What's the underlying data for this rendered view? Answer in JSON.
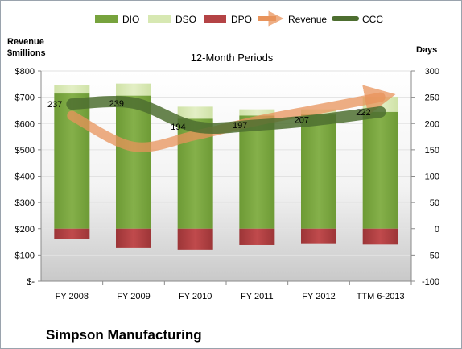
{
  "chart_data": {
    "type": "bar",
    "title": "12-Month Periods",
    "company": "Simpson Manufacturing",
    "categories": [
      "FY 2008",
      "FY 2009",
      "FY 2010",
      "FY 2011",
      "FY 2012",
      "TTM 6-2013"
    ],
    "legend": [
      "DIO",
      "DSO",
      "DPO",
      "Revenue",
      "CCC"
    ],
    "left_axis": {
      "title_line1": "Revenue",
      "title_line2": "$millions",
      "ylim": [
        0,
        800
      ],
      "ticks": [
        0,
        100,
        200,
        300,
        400,
        500,
        600,
        700,
        800
      ],
      "tick_labels": [
        "$-",
        "$100",
        "$200",
        "$300",
        "$400",
        "$500",
        "$600",
        "$700",
        "$800"
      ]
    },
    "right_axis": {
      "title": "Days",
      "ylim": [
        -100,
        300
      ],
      "ticks": [
        -100,
        -50,
        0,
        50,
        100,
        150,
        200,
        250,
        300
      ],
      "tick_labels": [
        "-100",
        "-50",
        "0",
        "50",
        "100",
        "150",
        "200",
        "250",
        "300"
      ]
    },
    "series": [
      {
        "name": "DIO",
        "axis": "right",
        "kind": "stacked-bar",
        "color": "#77a33d",
        "values": [
          257,
          253,
          209,
          215,
          217,
          222
        ]
      },
      {
        "name": "DSO",
        "axis": "right",
        "kind": "stacked-bar",
        "color": "#d7e8b2",
        "values": [
          0,
          0,
          0,
          0,
          0,
          0
        ]
      },
      {
        "name": "DPO",
        "axis": "right",
        "kind": "negative-bar",
        "color": "#b44345",
        "values": [
          -20,
          -37,
          -40,
          -31,
          -29,
          -30
        ]
      },
      {
        "name": "Revenue",
        "axis": "left",
        "kind": "line",
        "color": "#e8935b",
        "values": [
          630,
          512,
          555,
          610,
          655,
          700
        ]
      },
      {
        "name": "CCC",
        "axis": "right",
        "kind": "line",
        "color": "#4d6e30",
        "values": [
          237,
          239,
          194,
          197,
          207,
          222
        ]
      }
    ],
    "stacks_total_days": [
      273,
      276,
      232,
      227,
      227,
      251
    ],
    "ccc_labels": [
      "237",
      "239",
      "194",
      "197",
      "207",
      "222"
    ]
  }
}
